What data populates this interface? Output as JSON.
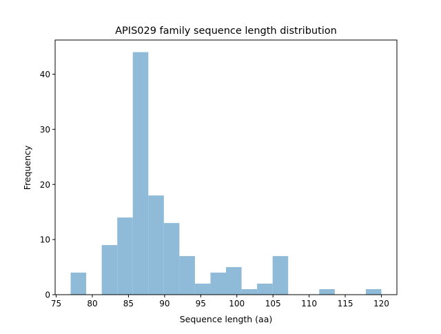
{
  "chart_data": {
    "type": "bar",
    "title": "APIS029 family sequence length distribution",
    "xlabel": "Sequence length (aa)",
    "ylabel": "Frequency",
    "bin_edges": [
      77,
      79.15,
      81.3,
      83.45,
      85.6,
      87.75,
      89.9,
      92.05,
      94.2,
      96.35,
      98.5,
      100.65,
      102.8,
      104.95,
      107.1,
      109.25,
      111.4,
      113.55,
      115.7,
      117.85,
      120
    ],
    "values": [
      4,
      0,
      9,
      14,
      44,
      18,
      13,
      7,
      2,
      4,
      5,
      1,
      2,
      7,
      0,
      0,
      1,
      0,
      0,
      1
    ],
    "xlim": [
      74.85,
      122.15
    ],
    "ylim": [
      0,
      46.2
    ],
    "xticks": [
      75,
      80,
      85,
      90,
      95,
      100,
      105,
      110,
      115,
      120
    ],
    "yticks": [
      0,
      10,
      20,
      30,
      40
    ],
    "grid": false,
    "bar_color": "#8fbbd9"
  }
}
